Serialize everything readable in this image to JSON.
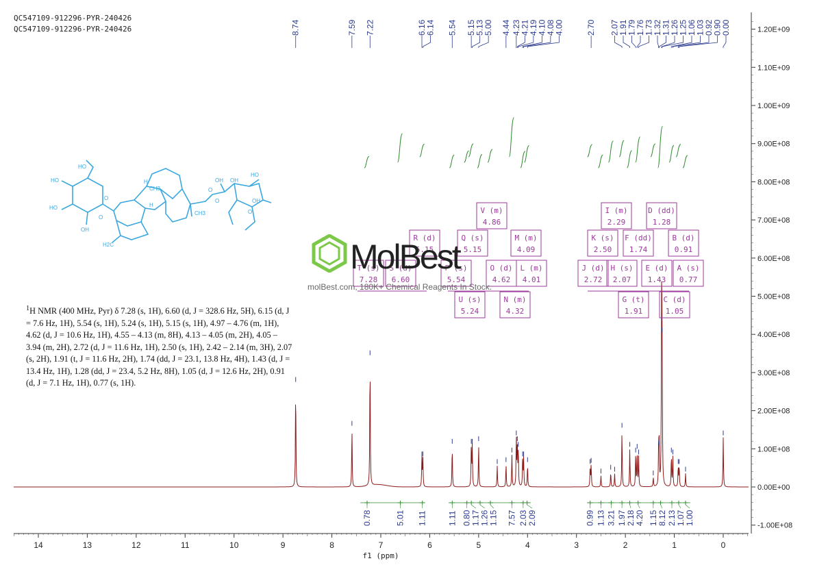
{
  "header": {
    "line1": "QC547109-912296-PYR-240426",
    "line2": "QC547109-912296-PYR-240426"
  },
  "description": {
    "sup": "1",
    "head": "H NMR (400 MHz, Pyr) δ 7.28 (s, 1H), 6.60 (d, J = 328.6 Hz, 5H), 6.15 (d, J = 7.6 Hz, 1H), 5.54 (s, 1H), 5.24 (s, 1H), 5.15 (s, 1H), 4.97 – 4.76 (m, 1H), 4.62 (d, J = 10.6 Hz, 1H), 4.55 – 4.13 (m, 8H), 4.13 – 4.05 (m, 2H), 4.05 – 3.94 (m, 2H), 2.72 (d, J = 11.6 Hz, 1H), 2.50 (s, 1H), 2.42 – 2.14 (m, 3H), 2.07 (s, 2H), 1.91 (t, J = 11.6 Hz, 2H), 1.74 (dd, J = 23.1, 13.8 Hz, 4H), 1.43 (d, J = 13.4 Hz, 1H), 1.28 (dd, J = 23.4, 5.2 Hz, 8H), 1.05 (d, J = 12.6 Hz, 2H), 0.91 (d, J = 7.1 Hz, 1H), 0.77 (s, 1H)."
  },
  "watermark": {
    "brand": "MolBest",
    "sub": "molBest.com, 180K+ Chemical Reagents In Stock."
  },
  "molecule": {
    "labels": [
      "HO",
      "HO",
      "HO",
      "OH",
      "O",
      "O",
      "H",
      "CH3",
      "CH3",
      "H",
      "O",
      "O",
      "O",
      "OH",
      "OH",
      "HO",
      "OH",
      "H2C"
    ]
  },
  "colors": {
    "spectrum": "#8b1a1a",
    "peak_labels": "#2b3a8f",
    "integrals": "#2e8b2e",
    "multiplets": "#9b3a9b",
    "molecule": "#3aa7e0",
    "watermark_green": "#7cc94a"
  },
  "chart_data": {
    "type": "line",
    "xlabel": "f1 (ppm)",
    "xlim": [
      14.5,
      -0.5
    ],
    "x_ticks": [
      "14",
      "13",
      "12",
      "11",
      "10",
      "9",
      "8",
      "7",
      "6",
      "5",
      "4",
      "3",
      "2",
      "1",
      "0"
    ],
    "ylim": [
      -100000000,
      1250000000
    ],
    "y_ticks": [
      "-1.00E+08",
      "0.00E+00",
      "1.00E+08",
      "2.00E+08",
      "3.00E+08",
      "4.00E+08",
      "5.00E+08",
      "6.00E+08",
      "7.00E+08",
      "8.00E+08",
      "9.00E+08",
      "1.00E+09",
      "1.10E+09",
      "1.20E+09"
    ],
    "peak_labels": [
      "8.74",
      "7.59",
      "7.22",
      "6.16",
      "6.14",
      "5.54",
      "5.15",
      "5.13",
      "5.00",
      "4.44",
      "4.23",
      "4.21",
      "4.19",
      "4.10",
      "4.08",
      "4.00",
      "2.70",
      "2.07",
      "1.91",
      "1.79",
      "1.76",
      "1.73",
      "1.32",
      "1.31",
      "1.26",
      "1.25",
      "1.06",
      "1.03",
      "0.92",
      "0.90",
      "0.00"
    ],
    "peaks": [
      {
        "ppm": 8.74,
        "height": 270000000
      },
      {
        "ppm": 7.59,
        "height": 155000000
      },
      {
        "ppm": 7.22,
        "height": 340000000
      },
      {
        "ppm": 6.16,
        "height": 75000000
      },
      {
        "ppm": 6.14,
        "height": 75000000
      },
      {
        "ppm": 5.54,
        "height": 108000000
      },
      {
        "ppm": 5.15,
        "height": 108000000
      },
      {
        "ppm": 5.13,
        "height": 108000000
      },
      {
        "ppm": 5.0,
        "height": 115000000
      },
      {
        "ppm": 4.62,
        "height": 55000000
      },
      {
        "ppm": 4.44,
        "height": 60000000
      },
      {
        "ppm": 4.32,
        "height": 85000000
      },
      {
        "ppm": 4.23,
        "height": 130000000
      },
      {
        "ppm": 4.21,
        "height": 115000000
      },
      {
        "ppm": 4.19,
        "height": 100000000
      },
      {
        "ppm": 4.1,
        "height": 75000000
      },
      {
        "ppm": 4.08,
        "height": 75000000
      },
      {
        "ppm": 4.0,
        "height": 60000000
      },
      {
        "ppm": 2.72,
        "height": 55000000
      },
      {
        "ppm": 2.7,
        "height": 58000000
      },
      {
        "ppm": 2.5,
        "height": 30000000
      },
      {
        "ppm": 2.3,
        "height": 40000000
      },
      {
        "ppm": 2.22,
        "height": 35000000
      },
      {
        "ppm": 2.07,
        "height": 150000000
      },
      {
        "ppm": 1.91,
        "height": 100000000
      },
      {
        "ppm": 1.79,
        "height": 85000000
      },
      {
        "ppm": 1.76,
        "height": 95000000
      },
      {
        "ppm": 1.73,
        "height": 80000000
      },
      {
        "ppm": 1.43,
        "height": 25000000
      },
      {
        "ppm": 1.32,
        "height": 100000000
      },
      {
        "ppm": 1.31,
        "height": 105000000
      },
      {
        "ppm": 1.26,
        "height": 430000000
      },
      {
        "ppm": 1.25,
        "height": 400000000
      },
      {
        "ppm": 1.06,
        "height": 85000000
      },
      {
        "ppm": 1.03,
        "height": 80000000
      },
      {
        "ppm": 0.92,
        "height": 55000000
      },
      {
        "ppm": 0.9,
        "height": 55000000
      },
      {
        "ppm": 0.77,
        "height": 35000000
      },
      {
        "ppm": 0.0,
        "height": 130000000
      }
    ],
    "integrals": [
      {
        "value": "0.78",
        "ppm": 7.28
      },
      {
        "value": "5.01",
        "ppm": 6.6
      },
      {
        "value": "1.11",
        "ppm": 6.15
      },
      {
        "value": "1.11",
        "ppm": 5.54
      },
      {
        "value": "0.80",
        "ppm": 5.24
      },
      {
        "value": "1.17",
        "ppm": 5.15
      },
      {
        "value": "1.26",
        "ppm": 4.97
      },
      {
        "value": "1.15",
        "ppm": 4.76
      },
      {
        "value": "7.57",
        "ppm": 4.32
      },
      {
        "value": "2.03",
        "ppm": 4.09
      },
      {
        "value": "2.09",
        "ppm": 4.01
      },
      {
        "value": "0.99",
        "ppm": 2.72
      },
      {
        "value": "1.13",
        "ppm": 2.5
      },
      {
        "value": "3.21",
        "ppm": 2.29
      },
      {
        "value": "1.97",
        "ppm": 2.07
      },
      {
        "value": "2.18",
        "ppm": 1.91
      },
      {
        "value": "4.20",
        "ppm": 1.74
      },
      {
        "value": "1.15",
        "ppm": 1.43
      },
      {
        "value": "8.12",
        "ppm": 1.28
      },
      {
        "value": "2.13",
        "ppm": 1.05
      },
      {
        "value": "1.07",
        "ppm": 0.91
      },
      {
        "value": "1.00",
        "ppm": 0.77
      }
    ],
    "multiplets": [
      {
        "label": "V (m)",
        "ppm": "4.86"
      },
      {
        "label": "R (d)",
        "ppm": "6.15"
      },
      {
        "label": "Q (s)",
        "ppm": "5.15"
      },
      {
        "label": "M (m)",
        "ppm": "4.09"
      },
      {
        "label": "T (s)",
        "ppm": "7.28"
      },
      {
        "label": "S (d)",
        "ppm": "6.60"
      },
      {
        "label": "P (s)",
        "ppm": "5.54"
      },
      {
        "label": "O (d)",
        "ppm": "4.62"
      },
      {
        "label": "L (m)",
        "ppm": "4.01"
      },
      {
        "label": "U (s)",
        "ppm": "5.24"
      },
      {
        "label": "N (m)",
        "ppm": "4.32"
      },
      {
        "label": "I (m)",
        "ppm": "2.29"
      },
      {
        "label": "D (dd)",
        "ppm": "1.28"
      },
      {
        "label": "K (s)",
        "ppm": "2.50"
      },
      {
        "label": "F (dd)",
        "ppm": "1.74"
      },
      {
        "label": "B (d)",
        "ppm": "0.91"
      },
      {
        "label": "J (d)",
        "ppm": "2.72"
      },
      {
        "label": "H (s)",
        "ppm": "2.07"
      },
      {
        "label": "E (d)",
        "ppm": "1.43"
      },
      {
        "label": "A (s)",
        "ppm": "0.77"
      },
      {
        "label": "G (t)",
        "ppm": "1.91"
      },
      {
        "label": "C (d)",
        "ppm": "1.05"
      }
    ]
  }
}
